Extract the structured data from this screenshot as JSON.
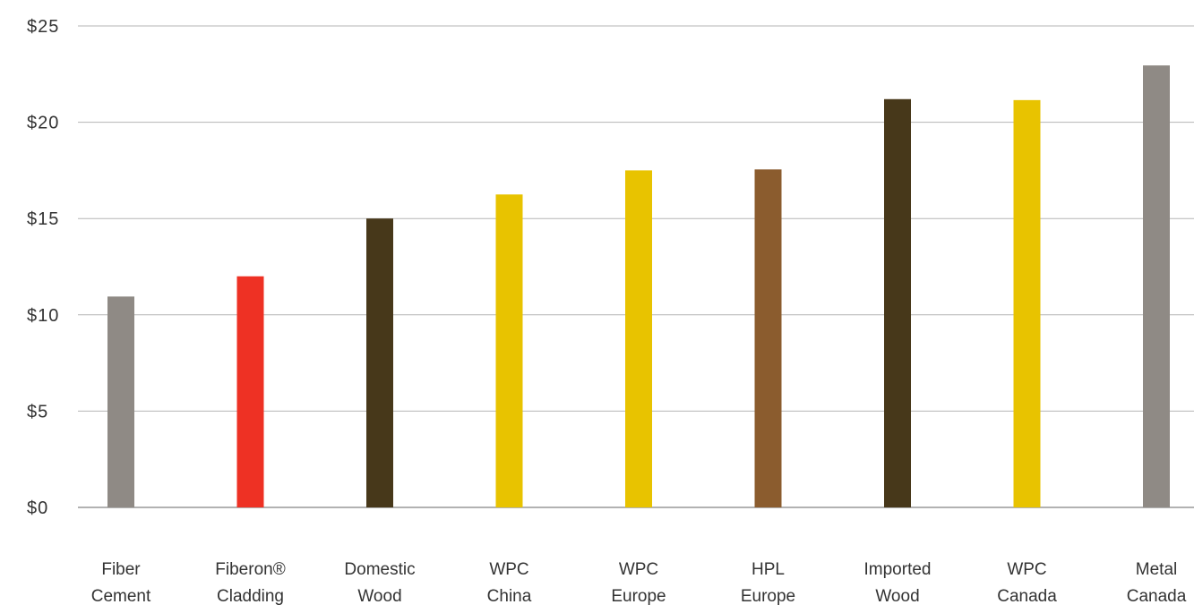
{
  "chart_data": {
    "type": "bar",
    "title": "",
    "xlabel": "",
    "ylabel": "",
    "ylim": [
      0,
      25
    ],
    "grid": true,
    "legend": "none",
    "y_ticks": [
      {
        "value": 0,
        "label": "$0"
      },
      {
        "value": 5,
        "label": "$5"
      },
      {
        "value": 10,
        "label": "$10"
      },
      {
        "value": 15,
        "label": "$15"
      },
      {
        "value": 20,
        "label": "$20"
      },
      {
        "value": 25,
        "label": "$25"
      }
    ],
    "categories": [
      [
        "Fiber",
        "Cement"
      ],
      [
        "Fiberon®",
        "Cladding"
      ],
      [
        "Domestic",
        "Wood"
      ],
      [
        "WPC",
        "China"
      ],
      [
        "WPC",
        "Europe"
      ],
      [
        "HPL",
        "Europe"
      ],
      [
        "Imported",
        "Wood"
      ],
      [
        "WPC",
        "Canada"
      ],
      [
        "Metal",
        "Canada"
      ]
    ],
    "values": [
      10.95,
      12.0,
      15.0,
      16.25,
      17.5,
      17.55,
      21.2,
      21.15,
      22.95
    ],
    "colors": [
      "#8f8a85",
      "#ee3124",
      "#47381a",
      "#e8c300",
      "#e8c300",
      "#8b5c2e",
      "#47381a",
      "#e8c300",
      "#8f8a85"
    ]
  }
}
